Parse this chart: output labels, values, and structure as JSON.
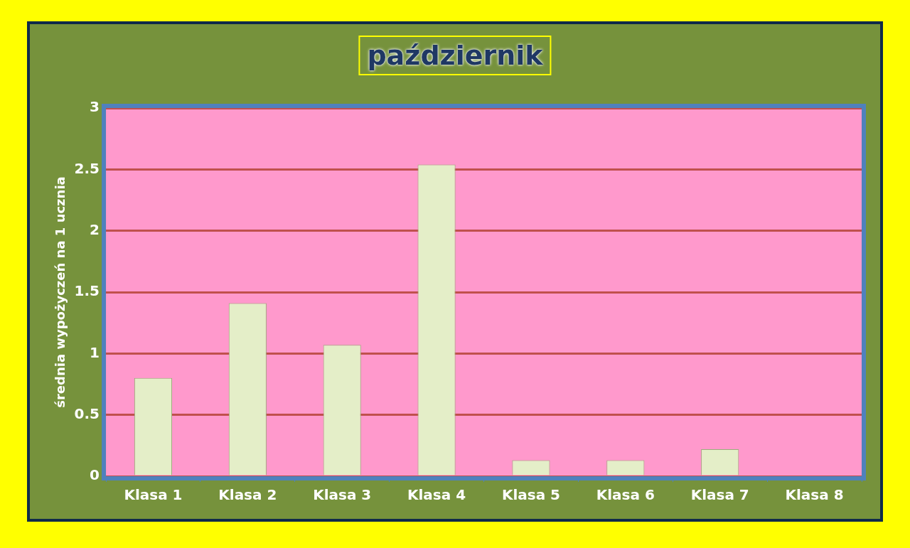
{
  "chart_data": {
    "type": "bar",
    "title": "październik",
    "ylabel": "średnia wypożyczeń na 1 ucznia",
    "categories": [
      "Klasa 1",
      "Klasa 2",
      "Klasa 3",
      "Klasa 4",
      "Klasa 5",
      "Klasa 6",
      "Klasa 7",
      "Klasa 8"
    ],
    "values": [
      0.8,
      1.41,
      1.07,
      2.54,
      0.13,
      0.13,
      0.22,
      0
    ],
    "color": "#e4eec8",
    "ylim": [
      0,
      3
    ],
    "yticks": [
      0,
      0.5,
      1,
      1.5,
      2,
      2.5,
      3
    ],
    "grid": true
  }
}
